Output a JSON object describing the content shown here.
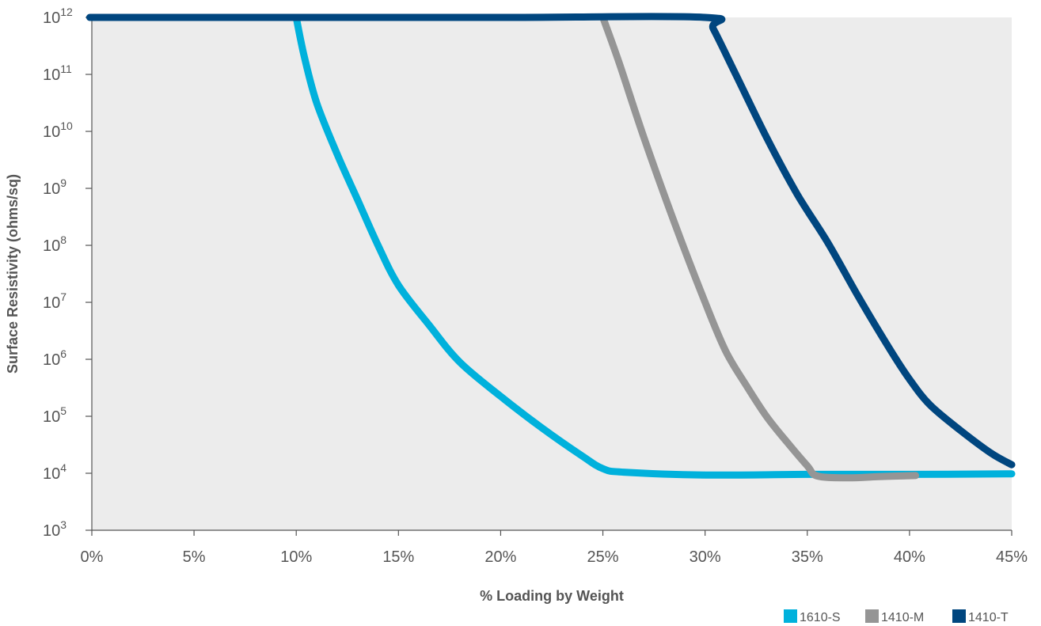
{
  "chart_data": {
    "type": "line",
    "title": "",
    "xlabel": "% Loading by Weight",
    "ylabel": "Surface Resistivity (ohms/sq)",
    "xlim": [
      0,
      45
    ],
    "ylim_exponent": [
      3,
      12
    ],
    "yscale": "log",
    "grid": false,
    "legend_position": "bottom-right",
    "x_ticks": [
      {
        "value": 0,
        "label": "0%"
      },
      {
        "value": 5,
        "label": "5%"
      },
      {
        "value": 10,
        "label": "10%"
      },
      {
        "value": 15,
        "label": "15%"
      },
      {
        "value": 20,
        "label": "20%"
      },
      {
        "value": 25,
        "label": "25%"
      },
      {
        "value": 30,
        "label": "30%"
      },
      {
        "value": 35,
        "label": "35%"
      },
      {
        "value": 40,
        "label": "40%"
      },
      {
        "value": 45,
        "label": "45%"
      }
    ],
    "y_ticks": [
      {
        "exponent": 3,
        "base": "10",
        "sup": "3"
      },
      {
        "exponent": 4,
        "base": "10",
        "sup": "4"
      },
      {
        "exponent": 5,
        "base": "10",
        "sup": "5"
      },
      {
        "exponent": 6,
        "base": "10",
        "sup": "6"
      },
      {
        "exponent": 7,
        "base": "10",
        "sup": "7"
      },
      {
        "exponent": 8,
        "base": "10",
        "sup": "8"
      },
      {
        "exponent": 9,
        "base": "10",
        "sup": "9"
      },
      {
        "exponent": 10,
        "base": "10",
        "sup": "10"
      },
      {
        "exponent": 11,
        "base": "10",
        "sup": "11"
      },
      {
        "exponent": 12,
        "base": "10",
        "sup": "12"
      }
    ],
    "series": [
      {
        "name": "1610-S",
        "color": "#00b1dc",
        "points": [
          [
            10,
            12
          ],
          [
            10.4,
            11.3
          ],
          [
            11,
            10.5
          ],
          [
            12,
            9.6
          ],
          [
            13,
            8.8
          ],
          [
            14,
            8.0
          ],
          [
            15,
            7.3
          ],
          [
            16.5,
            6.6
          ],
          [
            18,
            5.95
          ],
          [
            20,
            5.35
          ],
          [
            22,
            4.8
          ],
          [
            24,
            4.3
          ],
          [
            25,
            4.08
          ],
          [
            26,
            4.02
          ],
          [
            30,
            3.97
          ],
          [
            35,
            3.98
          ],
          [
            40,
            3.98
          ],
          [
            45,
            3.99
          ]
        ]
      },
      {
        "name": "1410-M",
        "color": "#959595",
        "points": [
          [
            25,
            12
          ],
          [
            25.8,
            11.2
          ],
          [
            27,
            9.9
          ],
          [
            28.5,
            8.4
          ],
          [
            30,
            7.0
          ],
          [
            31,
            6.15
          ],
          [
            32,
            5.55
          ],
          [
            33,
            5.0
          ],
          [
            34,
            4.55
          ],
          [
            35,
            4.13
          ],
          [
            35.5,
            3.95
          ],
          [
            37,
            3.92
          ],
          [
            38.5,
            3.94
          ],
          [
            40.3,
            3.96
          ]
        ]
      },
      {
        "name": "1410-T",
        "color": "#00467f",
        "points": [
          [
            -0.1,
            12
          ],
          [
            10,
            12
          ],
          [
            20,
            12
          ],
          [
            30,
            12
          ],
          [
            30.4,
            11.8
          ],
          [
            31.5,
            11.0
          ],
          [
            33,
            9.9
          ],
          [
            34.5,
            8.9
          ],
          [
            36,
            8.05
          ],
          [
            37.5,
            7.1
          ],
          [
            39,
            6.2
          ],
          [
            40,
            5.65
          ],
          [
            41,
            5.2
          ],
          [
            42.5,
            4.75
          ],
          [
            44,
            4.35
          ],
          [
            45,
            4.15
          ]
        ]
      }
    ]
  }
}
